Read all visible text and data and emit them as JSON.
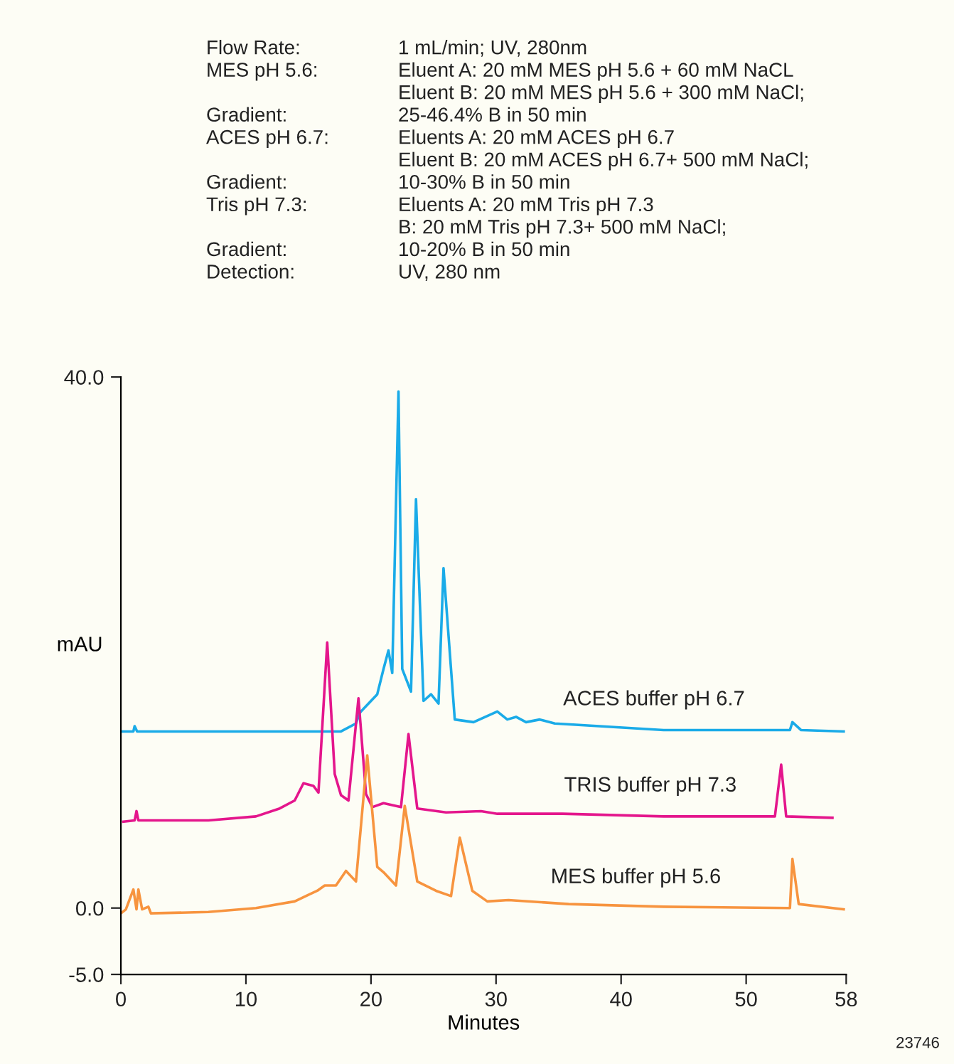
{
  "chart_data": {
    "type": "line",
    "xlabel": "Minutes",
    "ylabel": "mAU",
    "annotations": [
      "Flow Rate:\nMES pH 5.6:\n\nGradient:\nACES pH 6.7:\n\nGradient:\nTris pH 7.3:\n\nGradient:\nDetection:",
      "1 mL/min; UV, 280nm\nEluent A: 20 mM MES pH 5.6 + 60 mM NaCL\nEluent B: 20 mM MES pH 5.6 + 300 mM NaCl;\n25-46.4% B in 50 min\nEluents A: 20 mM ACES pH 6.7\nEluent B: 20 mM ACES pH 6.7+ 500 mM NaCl;\n10-30% B in 50 min\nEluents A: 20 mM Tris pH 7.3\nB: 20 mM Tris pH 7.3+ 500 mM NaCl;\n10-20% B in 50 min\nUV, 280 nm",
      "23746"
    ],
    "xlim": [
      0,
      58
    ],
    "xticks": [
      0,
      10,
      20,
      30,
      40,
      50,
      58
    ],
    "ylim": [
      -5,
      40
    ],
    "yticks": [
      {
        "value": 40,
        "label": "40.0"
      },
      {
        "value": 0,
        "label": "0.0"
      },
      {
        "value": -5,
        "label": "-5.0"
      }
    ],
    "grid": false,
    "legend": false,
    "marker": "none",
    "line_style": "solid",
    "series": [
      {
        "name": "ACES buffer pH 6.7",
        "color": "#1aabe8",
        "x": [
          0,
          1.0,
          1.1,
          1.3,
          17.6,
          18.8,
          19.1,
          20.5,
          21.0,
          21.4,
          21.7,
          22.2,
          22.5,
          23.2,
          23.6,
          24.2,
          24.8,
          25.4,
          25.8,
          26.7,
          28.2,
          30.1,
          30.9,
          31.6,
          32.4,
          33.5,
          34.7,
          43.4,
          53.5,
          53.7,
          54.4,
          57.8
        ],
        "values": [
          13.3,
          13.3,
          13.7,
          13.3,
          13.3,
          13.9,
          14.7,
          16.1,
          18.0,
          19.4,
          17.7,
          38.9,
          18.0,
          16.3,
          30.8,
          15.6,
          16.1,
          15.4,
          25.6,
          14.2,
          14.0,
          14.8,
          14.2,
          14.4,
          14.0,
          14.2,
          13.9,
          13.4,
          13.4,
          14.0,
          13.4,
          13.3
        ]
      },
      {
        "name": "TRIS buffer pH 7.3",
        "color": "#e4168c",
        "x": [
          0.2,
          1.1,
          1.25,
          1.4,
          2.5,
          7.0,
          10.8,
          12.7,
          13.9,
          14.6,
          15.4,
          15.8,
          16.5,
          17.1,
          17.6,
          18.2,
          19.0,
          19.6,
          20.1,
          21.0,
          22.4,
          23.0,
          23.7,
          26.0,
          28.8,
          30.1,
          31.3,
          35.3,
          43.4,
          52.3,
          52.8,
          53.2,
          56.9
        ],
        "values": [
          6.5,
          6.6,
          7.3,
          6.6,
          6.6,
          6.6,
          6.9,
          7.5,
          8.1,
          9.4,
          9.2,
          8.7,
          20.0,
          10.1,
          8.5,
          8.1,
          15.8,
          8.6,
          7.6,
          7.9,
          7.6,
          13.1,
          7.5,
          7.2,
          7.3,
          7.1,
          7.1,
          7.1,
          6.9,
          6.9,
          10.8,
          6.9,
          6.8
        ]
      },
      {
        "name": "MES buffer pH 5.6",
        "color": "#f7943f",
        "x": [
          0,
          0.4,
          1.0,
          1.25,
          1.4,
          1.7,
          2.2,
          2.4,
          7.0,
          10.8,
          13.9,
          15.0,
          15.7,
          16.3,
          17.2,
          18.0,
          18.8,
          19.7,
          20.5,
          21.0,
          22.0,
          22.7,
          23.7,
          25.2,
          26.4,
          27.1,
          28.1,
          29.3,
          31.0,
          35.8,
          43.4,
          53.5,
          53.7,
          54.2,
          57.8
        ],
        "values": [
          -0.4,
          -0.1,
          1.4,
          -0.1,
          1.4,
          -0.1,
          0.1,
          -0.4,
          -0.3,
          0,
          0.5,
          1.0,
          1.3,
          1.7,
          1.7,
          2.8,
          2.0,
          11.5,
          3.1,
          2.7,
          1.7,
          7.7,
          2.0,
          1.3,
          0.9,
          5.3,
          1.3,
          0.5,
          0.6,
          0.3,
          0.1,
          0,
          3.7,
          0.3,
          -0.1
        ]
      }
    ]
  }
}
